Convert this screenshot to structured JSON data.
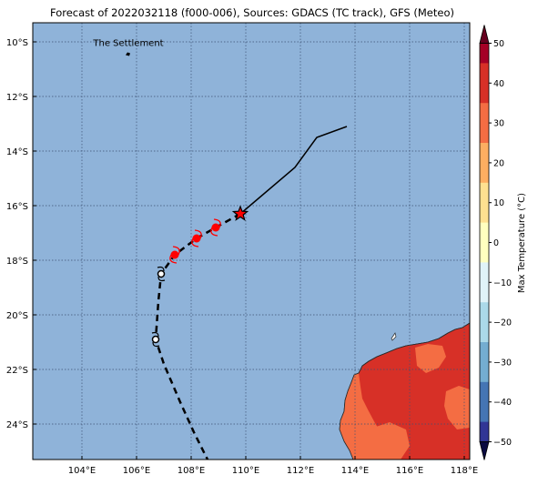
{
  "title": "Forecast of 2022032118 (f000-006), Sources: GDACS (TC track), GFS (Meteo)",
  "map": {
    "lon_range": [
      102.2,
      118.2
    ],
    "lat_range": [
      -25.3,
      -9.3
    ],
    "x_ticks": [
      {
        "lon": 104,
        "label": "104°E"
      },
      {
        "lon": 106,
        "label": "106°E"
      },
      {
        "lon": 108,
        "label": "108°E"
      },
      {
        "lon": 110,
        "label": "110°E"
      },
      {
        "lon": 112,
        "label": "112°E"
      },
      {
        "lon": 114,
        "label": "114°E"
      },
      {
        "lon": 116,
        "label": "116°E"
      },
      {
        "lon": 118,
        "label": "118°E"
      }
    ],
    "y_ticks": [
      {
        "lat": -10,
        "label": "10°S"
      },
      {
        "lat": -12,
        "label": "12°S"
      },
      {
        "lat": -14,
        "label": "14°S"
      },
      {
        "lat": -16,
        "label": "16°S"
      },
      {
        "lat": -18,
        "label": "18°S"
      },
      {
        "lat": -20,
        "label": "20°S"
      },
      {
        "lat": -22,
        "label": "22°S"
      },
      {
        "lat": -24,
        "label": "24°S"
      }
    ],
    "grid": true,
    "ocean_color": "#8fb3d9",
    "settlement": {
      "label": "The Settlement",
      "lon": 105.7,
      "lat": -10.45
    },
    "past_track": [
      {
        "lon": 113.7,
        "lat": -13.1
      },
      {
        "lon": 112.6,
        "lat": -13.5
      },
      {
        "lon": 111.8,
        "lat": -14.6
      },
      {
        "lon": 109.8,
        "lat": -16.3
      }
    ],
    "current_position": {
      "lon": 109.8,
      "lat": -16.3
    },
    "forecast_track": [
      {
        "lon": 109.8,
        "lat": -16.3
      },
      {
        "lon": 108.9,
        "lat": -16.8
      },
      {
        "lon": 108.2,
        "lat": -17.2
      },
      {
        "lon": 107.4,
        "lat": -17.8
      },
      {
        "lon": 106.9,
        "lat": -18.5
      },
      {
        "lon": 106.8,
        "lat": -19.5
      },
      {
        "lon": 106.7,
        "lat": -20.9
      },
      {
        "lon": 107.0,
        "lat": -21.8
      },
      {
        "lon": 107.6,
        "lat": -23.2
      },
      {
        "lon": 108.1,
        "lat": -24.3
      },
      {
        "lon": 108.6,
        "lat": -25.3
      }
    ],
    "tc_symbols": [
      {
        "lon": 108.9,
        "lat": -16.8,
        "type": "storm",
        "color": "#ff0000"
      },
      {
        "lon": 108.2,
        "lat": -17.2,
        "type": "storm",
        "color": "#ff0000"
      },
      {
        "lon": 107.4,
        "lat": -17.8,
        "type": "storm",
        "color": "#ff0000"
      },
      {
        "lon": 106.9,
        "lat": -18.5,
        "type": "low",
        "color": "#ffffff"
      },
      {
        "lon": 106.7,
        "lat": -20.9,
        "type": "low",
        "color": "#ffffff"
      }
    ],
    "land_colors": {
      "hot": "#d73027",
      "warm": "#f46d43",
      "coast": "#2a2a2a"
    }
  },
  "colorbar": {
    "label": "Max Temperature (°C)",
    "ticks": [
      "50",
      "40",
      "30",
      "20",
      "10",
      "0",
      "−10",
      "−20",
      "−30",
      "−40",
      "−50"
    ],
    "colors": [
      "#a50026",
      "#d73027",
      "#f46d43",
      "#fdae61",
      "#fee090",
      "#ffffbf",
      "#e0f3f8",
      "#abd9e9",
      "#74add1",
      "#4575b4",
      "#313695"
    ]
  }
}
